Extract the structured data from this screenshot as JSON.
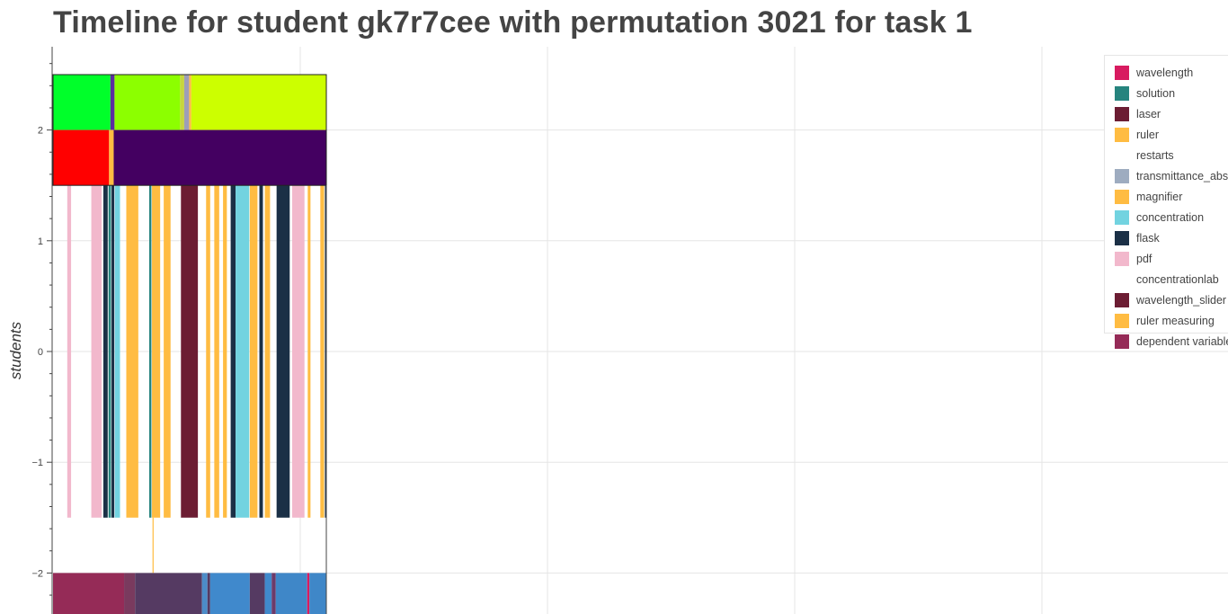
{
  "title": "Timeline for student gk7r7cee with permutation 3021 for task 1",
  "chart_data": {
    "type": "timeline",
    "title": "Timeline for student gk7r7cee with permutation 3021 for task 1",
    "ylabel": "students",
    "yticks": [
      -2,
      -1,
      0,
      1,
      2
    ],
    "yticklabels": [
      "−2",
      "−1",
      "0",
      "1",
      "2"
    ],
    "ylim": [
      -2.38,
      2.75
    ],
    "xlim": [
      0,
      1
    ],
    "grid": true,
    "legend_position": "top-right",
    "legend": [
      {
        "label": "wavelength",
        "color": "#D81B60"
      },
      {
        "label": "solution",
        "color": "#26847E"
      },
      {
        "label": "laser",
        "color": "#6C1D33"
      },
      {
        "label": "ruler",
        "color": "#FFBC42"
      },
      {
        "label": "restarts",
        "color": "#FFFFFF"
      },
      {
        "label": "transmittance_abs",
        "color": "#9EACC0"
      },
      {
        "label": "magnifier",
        "color": "#FFBC42"
      },
      {
        "label": "concentration",
        "color": "#72D3E0"
      },
      {
        "label": "flask",
        "color": "#1B3046"
      },
      {
        "label": "pdf",
        "color": "#F2B8CC"
      },
      {
        "label": "concentrationlab",
        "color": "#FFFFFF"
      },
      {
        "label": "wavelength_slider",
        "color": "#6C1D33"
      },
      {
        "label": "ruler measuring",
        "color": "#FFBC42"
      },
      {
        "label": "dependent variable",
        "color": "#952B57"
      }
    ],
    "rows": [
      {
        "name": "row-top",
        "y0": 2.0,
        "y1": 2.5,
        "segments": [
          {
            "x0": 0.0,
            "x1": 0.21,
            "color": "#00FF2A"
          },
          {
            "x0": 0.21,
            "x1": 0.225,
            "color": "#5B2CA0"
          },
          {
            "x0": 0.225,
            "x1": 0.465,
            "color": "#8CFF00"
          },
          {
            "x0": 0.465,
            "x1": 0.48,
            "color": "#C7D63C"
          },
          {
            "x0": 0.48,
            "x1": 0.498,
            "color": "#9E9EB8"
          },
          {
            "x0": 0.498,
            "x1": 0.506,
            "color": "#FFBC42"
          },
          {
            "x0": 0.506,
            "x1": 1.0,
            "color": "#CCFF00"
          }
        ]
      },
      {
        "name": "row-second",
        "y0": 1.5,
        "y1": 2.0,
        "segments": [
          {
            "x0": 0.0,
            "x1": 0.205,
            "color": "#FF0000"
          },
          {
            "x0": 0.205,
            "x1": 0.222,
            "color": "#FFBC42"
          },
          {
            "x0": 0.222,
            "x1": 1.0,
            "color": "#440061"
          }
        ]
      },
      {
        "name": "row-middle",
        "y0": -1.5,
        "y1": 1.5,
        "segments": [
          {
            "x0": 0.052,
            "x1": 0.066,
            "color": "#F2B8CC"
          },
          {
            "x0": 0.14,
            "x1": 0.178,
            "color": "#F2B8CC"
          },
          {
            "x0": 0.184,
            "x1": 0.2,
            "color": "#1B3046"
          },
          {
            "x0": 0.203,
            "x1": 0.212,
            "color": "#26847E"
          },
          {
            "x0": 0.214,
            "x1": 0.224,
            "color": "#1B3046"
          },
          {
            "x0": 0.226,
            "x1": 0.245,
            "color": "#72D3E0"
          },
          {
            "x0": 0.268,
            "x1": 0.312,
            "color": "#FFBC42"
          },
          {
            "x0": 0.352,
            "x1": 0.36,
            "color": "#26847E"
          },
          {
            "x0": 0.362,
            "x1": 0.392,
            "color": "#FFBC42"
          },
          {
            "x0": 0.405,
            "x1": 0.43,
            "color": "#FFBC42"
          },
          {
            "x0": 0.468,
            "x1": 0.53,
            "color": "#6C1D33"
          },
          {
            "x0": 0.56,
            "x1": 0.575,
            "color": "#FFBC42"
          },
          {
            "x0": 0.59,
            "x1": 0.608,
            "color": "#FFBC42"
          },
          {
            "x0": 0.622,
            "x1": 0.636,
            "color": "#FFBC42"
          },
          {
            "x0": 0.65,
            "x1": 0.668,
            "color": "#1B3046"
          },
          {
            "x0": 0.668,
            "x1": 0.718,
            "color": "#72D3E0"
          },
          {
            "x0": 0.72,
            "x1": 0.748,
            "color": "#FFBC42"
          },
          {
            "x0": 0.755,
            "x1": 0.768,
            "color": "#1B3046"
          },
          {
            "x0": 0.775,
            "x1": 0.794,
            "color": "#FFBC42"
          },
          {
            "x0": 0.818,
            "x1": 0.866,
            "color": "#1B3046"
          },
          {
            "x0": 0.875,
            "x1": 0.92,
            "color": "#F2B8CC"
          },
          {
            "x0": 0.932,
            "x1": 0.942,
            "color": "#FFBC42"
          },
          {
            "x0": 0.978,
            "x1": 0.992,
            "color": "#FFBC42"
          },
          {
            "x0": 0.995,
            "x1": 1.0,
            "color": "#1B3046"
          }
        ]
      },
      {
        "name": "row-restart-line",
        "y0": -2.0,
        "y1": -1.5,
        "segments": [
          {
            "x0": 0.364,
            "x1": 0.368,
            "color": "#FFBC42"
          }
        ]
      },
      {
        "name": "row-bottom",
        "y0": -2.38,
        "y1": -2.0,
        "segments": [
          {
            "x0": 0.0,
            "x1": 0.26,
            "color": "#952B57"
          },
          {
            "x0": 0.26,
            "x1": 0.3,
            "color": "#7A3A5E"
          },
          {
            "x0": 0.3,
            "x1": 0.545,
            "color": "#553A62"
          },
          {
            "x0": 0.545,
            "x1": 0.565,
            "color": "#4C8CC8"
          },
          {
            "x0": 0.565,
            "x1": 0.575,
            "color": "#553A62"
          },
          {
            "x0": 0.575,
            "x1": 0.72,
            "color": "#4089CC"
          },
          {
            "x0": 0.72,
            "x1": 0.775,
            "color": "#553A62"
          },
          {
            "x0": 0.775,
            "x1": 0.8,
            "color": "#4089CC"
          },
          {
            "x0": 0.8,
            "x1": 0.815,
            "color": "#6C3A6A"
          },
          {
            "x0": 0.815,
            "x1": 0.93,
            "color": "#3F87C8"
          },
          {
            "x0": 0.93,
            "x1": 0.938,
            "color": "#D81B60"
          },
          {
            "x0": 0.938,
            "x1": 1.0,
            "color": "#3F87C8"
          }
        ]
      }
    ]
  }
}
